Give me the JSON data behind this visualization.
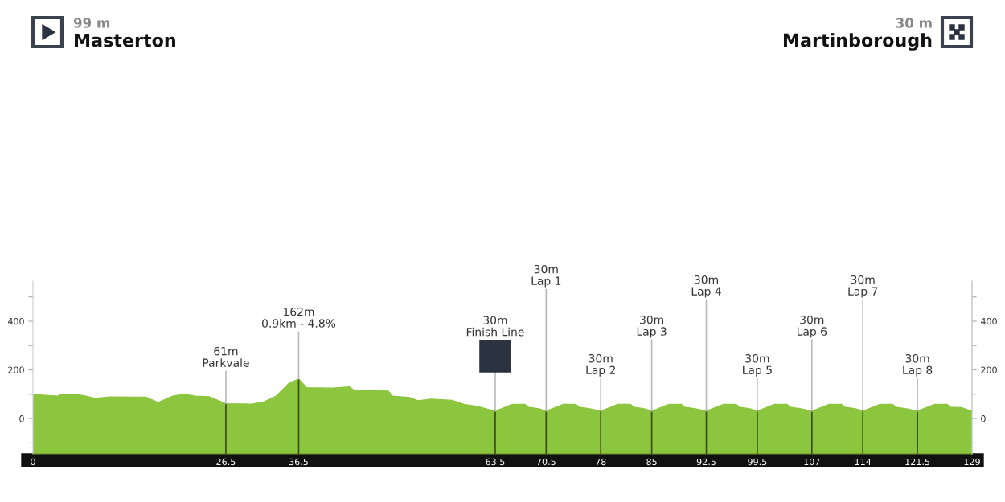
{
  "chart_data": {
    "type": "area",
    "x": [
      0,
      3.4,
      3.9,
      6.0,
      7.3,
      8.5,
      10.6,
      14.6,
      15.5,
      17.2,
      19.2,
      20.9,
      22.3,
      24.2,
      26.5,
      29.3,
      29.9,
      31.6,
      33.4,
      35.2,
      36.5,
      37.6,
      41.1,
      43.5,
      44.1,
      48.8,
      49.4,
      51.8,
      52.9,
      54.7,
      57.6,
      59.2,
      61,
      63.5,
      65.8,
      67.6,
      68,
      69.5,
      70.5,
      72.8,
      74.6,
      75,
      76.5,
      78,
      80.3,
      82.1,
      82.5,
      84,
      85,
      87.3,
      89.1,
      89.5,
      91,
      92.5,
      94.8,
      96.6,
      97,
      98.5,
      99.5,
      101.8,
      103.6,
      104,
      105.5,
      107,
      109.3,
      111.1,
      111.5,
      113,
      114,
      116.3,
      118.1,
      118.5,
      120,
      121.5,
      123.8,
      125.6,
      126,
      127.5,
      129
    ],
    "series": [
      {
        "color": "#8cc63e",
        "values": [
          99,
          92,
          99,
          99,
          92,
          83,
          89,
          88,
          88,
          66,
          92,
          100,
          92,
          90,
          61,
          60,
          58,
          67,
          92,
          146,
          162,
          127,
          125,
          130,
          116,
          113,
          92,
          86,
          73,
          80,
          75,
          58,
          50,
          30,
          58,
          58,
          47,
          40,
          30,
          58,
          58,
          47,
          40,
          30,
          58,
          58,
          47,
          40,
          30,
          58,
          58,
          47,
          40,
          30,
          58,
          58,
          47,
          40,
          30,
          58,
          58,
          47,
          40,
          30,
          58,
          58,
          47,
          40,
          30,
          58,
          58,
          47,
          40,
          30,
          58,
          58,
          47,
          45,
          30
        ]
      }
    ],
    "xlim": [
      0,
      129
    ],
    "xticks": [
      0,
      26.5,
      36.5,
      63.5,
      70.5,
      78,
      85,
      92.5,
      99.5,
      107,
      114,
      121.5,
      129
    ],
    "ylim": [
      -145,
      565
    ],
    "yticks": [
      {
        "value": -100,
        "label": null
      },
      0,
      {
        "value": 100,
        "label": null
      },
      200,
      {
        "value": 300,
        "label": null
      },
      400,
      {
        "value": 500,
        "label": null
      }
    ],
    "y2lim": [
      -145,
      565
    ],
    "y2ticks": [
      {
        "value": -100,
        "label": null
      },
      0,
      {
        "value": 100,
        "label": null
      },
      200,
      {
        "value": 300,
        "label": null
      },
      400,
      {
        "value": 500,
        "label": null
      }
    ],
    "grid": false,
    "legend": false,
    "annotations": [
      "99 m",
      "Masterton",
      "30 m",
      "Martinborough",
      {
        "text": "61m\nParkvale",
        "x": 26.5,
        "y": 61
      },
      {
        "text": "162m\n0.9km - 4.8%",
        "x": 36.5,
        "y": 162
      },
      {
        "text": "30m\nFinish Line",
        "x": 63.5,
        "y": 30
      },
      {
        "text": "30m\nLap 1",
        "x": 70.5,
        "y": 30
      },
      {
        "text": "30m\nLap 2",
        "x": 78,
        "y": 30
      },
      {
        "text": "30m\nLap 3",
        "x": 85,
        "y": 30
      },
      {
        "text": "30m\nLap 4",
        "x": 92.5,
        "y": 30
      },
      {
        "text": "30m\nLap 5",
        "x": 99.5,
        "y": 30
      },
      {
        "text": "30m\nLap 6",
        "x": 107,
        "y": 30
      },
      {
        "text": "30m\nLap 7",
        "x": 114,
        "y": 30
      },
      {
        "text": "30m\nLap 8",
        "x": 121.5,
        "y": 30
      }
    ]
  }
}
